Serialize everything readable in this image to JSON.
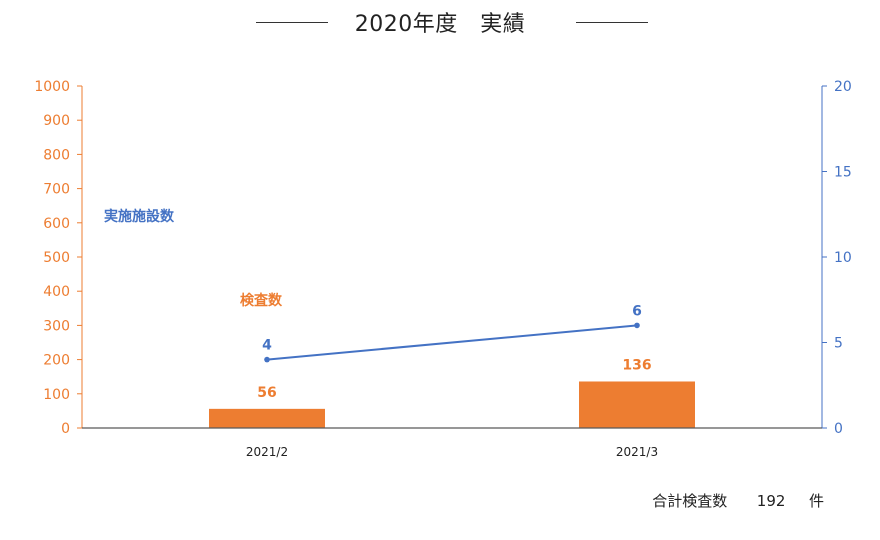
{
  "title": "2020年度　実績",
  "total": {
    "label": "合計検査数",
    "value": "192",
    "unit": "件"
  },
  "colors": {
    "bar": "#ED7D31",
    "line": "#4472C4",
    "axis": "#595959"
  },
  "chart_data": {
    "type": "bar+line",
    "categories": [
      "2021/2",
      "2021/3"
    ],
    "series": [
      {
        "name": "検査数",
        "type": "bar",
        "axis": "left",
        "values": [
          56,
          136
        ]
      },
      {
        "name": "実施施設数",
        "type": "line",
        "axis": "right",
        "values": [
          4,
          6
        ]
      }
    ],
    "y_left": {
      "min": 0,
      "max": 1000,
      "ticks": [
        0,
        100,
        200,
        300,
        400,
        500,
        600,
        700,
        800,
        900,
        1000
      ]
    },
    "y_right": {
      "min": 0,
      "max": 20,
      "ticks": [
        0,
        5,
        10,
        15,
        20
      ]
    },
    "data_labels": true,
    "grid": false
  }
}
